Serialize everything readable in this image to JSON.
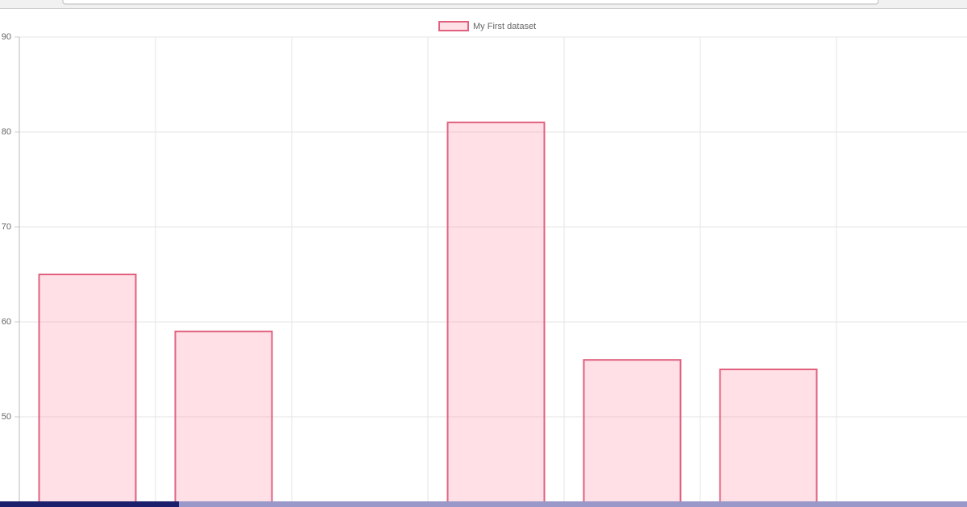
{
  "chart_data": {
    "type": "bar",
    "categories": [
      null,
      null,
      null,
      null,
      null,
      null,
      null
    ],
    "series": [
      {
        "name": "My First dataset",
        "color": "#e0607e",
        "values": [
          65,
          59,
          null,
          81,
          56,
          55,
          null
        ]
      }
    ],
    "ylim": [
      40,
      90
    ],
    "yticks": [
      50,
      60,
      70,
      80,
      90
    ],
    "grid": true,
    "legend": "top"
  }
}
